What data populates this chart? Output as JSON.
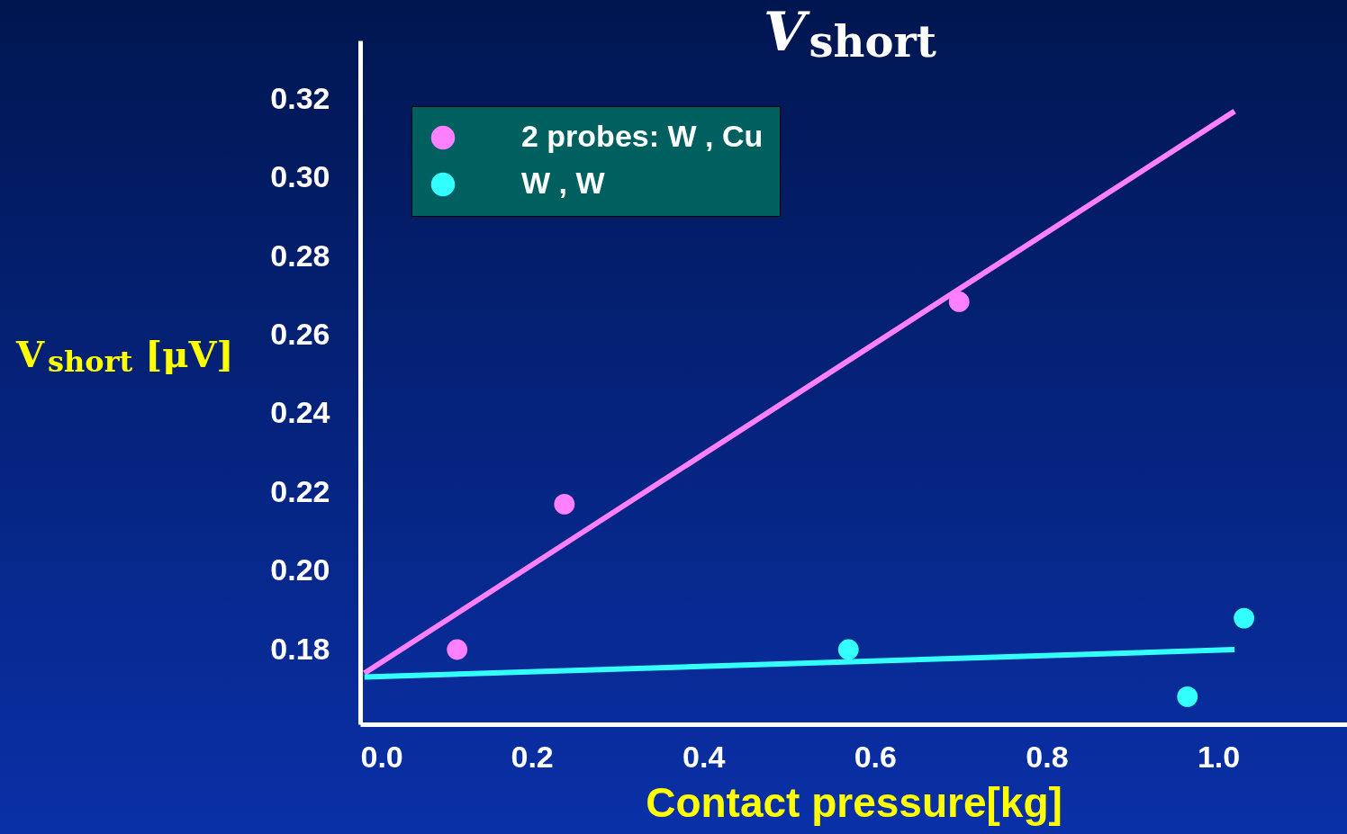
{
  "chart_data": {
    "type": "scatter",
    "title": "V$_{short}$",
    "xlabel": "Contact pressure[kg]",
    "ylabel": "V$_{short}$ [μV]",
    "xlim": [
      0,
      1.15
    ],
    "ylim": [
      0.161,
      0.335
    ],
    "xticks": [
      {
        "value": 0,
        "label": "0.0"
      },
      0.2,
      0.4,
      0.6,
      0.8,
      {
        "value": 1,
        "label": "1.0"
      }
    ],
    "yticks": [
      0.18,
      {
        "value": 0.2,
        "label": "0.20"
      },
      0.22,
      0.24,
      0.26,
      0.28,
      {
        "value": 0.3,
        "label": "0.30"
      },
      0.32
    ],
    "grid": false,
    "legend": "top left",
    "marker": "circle",
    "series": [
      {
        "name": "2 probes: W , Cu",
        "color": "#ff80ff",
        "x": [
          0.113,
          0.238,
          0.698
        ],
        "values": [
          0.18,
          0.217,
          0.2685
        ]
      },
      {
        "name": "W ,  W",
        "color": "#33ffff",
        "x": [
          0.569,
          1.03,
          0.964
        ],
        "values": [
          0.18,
          0.188,
          0.168
        ]
      },
      {
        "type": "line",
        "marker": "none",
        "color": "#ff80ff",
        "x": [
          0.005,
          1.019
        ],
        "values": [
          0.174,
          0.317
        ]
      },
      {
        "type": "line",
        "marker": "none",
        "color": "#33ffff",
        "x": [
          0.005,
          1.019
        ],
        "values": [
          0.173,
          0.18
        ]
      }
    ]
  }
}
